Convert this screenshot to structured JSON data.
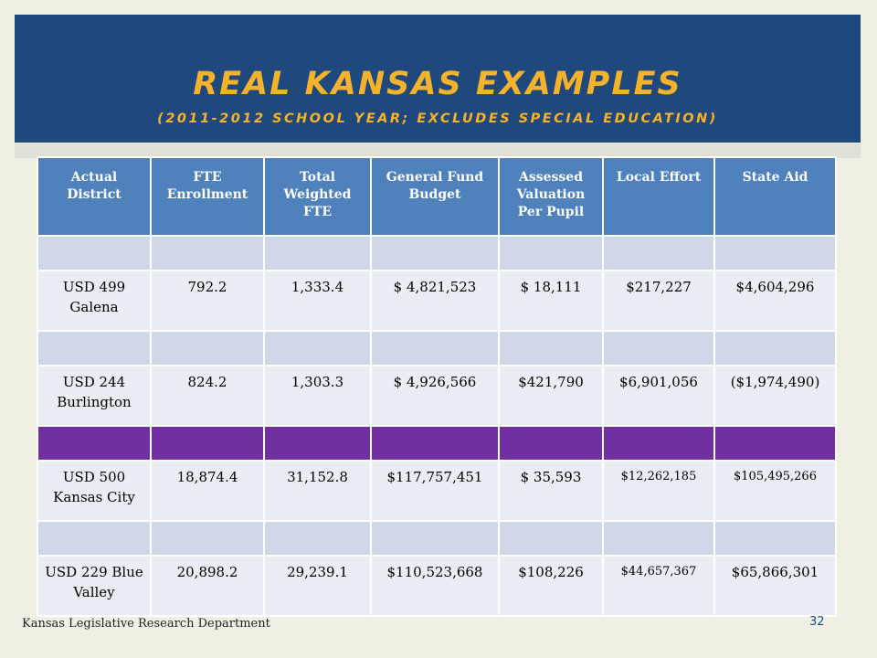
{
  "slide": {
    "title": "REAL KANSAS EXAMPLES",
    "subtitle": "(2011-2012 SCHOOL YEAR; EXCLUDES SPECIAL EDUCATION)",
    "footer": "Kansas Legislative Research Department",
    "page_number": "32"
  },
  "table": {
    "headers": [
      "Actual District",
      "FTE Enrollment",
      "Total Weighted FTE",
      "General Fund Budget",
      "Assessed Valuation Per Pupil",
      "Local Effort",
      "State Aid"
    ],
    "rows": [
      [
        "USD 499 Galena",
        "792.2",
        "1,333.4",
        "$ 4,821,523",
        "$ 18,111",
        "$217,227",
        "$4,604,296"
      ],
      [
        "USD 244 Burlington",
        "824.2",
        "1,303.3",
        "$ 4,926,566",
        "$421,790",
        "$6,901,056",
        "($1,974,490)"
      ],
      [
        "USD 500 Kansas City",
        "18,874.4",
        "31,152.8",
        "$117,757,451",
        "$ 35,593",
        "$12,262,185",
        "$105,495,266"
      ],
      [
        "USD 229 Blue Valley",
        "20,898.2",
        "29,239.1",
        "$110,523,668",
        "$108,226",
        "$44,657,367",
        "$65,866,301"
      ]
    ]
  },
  "colors": {
    "title_band": "#1f497d",
    "title_text": "#f4b32a",
    "header_fill": "#4f81bd",
    "gap_fill": "#d0d8e8",
    "highlight_gap": "#7030a0",
    "row_fill": "#e9edf4"
  }
}
